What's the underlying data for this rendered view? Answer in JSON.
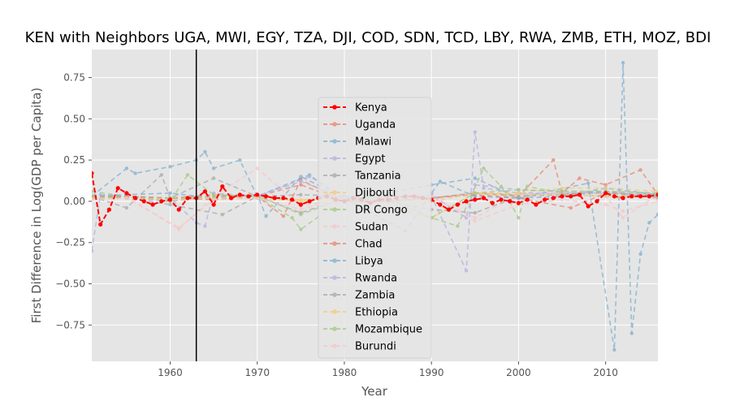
{
  "chart_data": {
    "type": "line",
    "title": "KEN with Neighbors UGA, MWI, EGY, TZA, DJI, COD, SDN, TCD, LBY, RWA, ZMB, ETH, MOZ, BDI",
    "xlabel": "Year",
    "ylabel": "First Difference in Log(GDP per Capita)",
    "xlim": [
      1951,
      2016
    ],
    "ylim": [
      -0.97,
      0.92
    ],
    "xticks": [
      1960,
      1970,
      1980,
      1990,
      2000,
      2010
    ],
    "yticks": [
      -0.75,
      -0.5,
      -0.25,
      0.0,
      0.25,
      0.5,
      0.75
    ],
    "ytick_labels": [
      "−0.75",
      "−0.50",
      "−0.25",
      "0.00",
      "0.25",
      "0.50",
      "0.75"
    ],
    "grid": true,
    "legend_position": "center",
    "vertical_line_x": 1963,
    "series": [
      {
        "name": "Kenya",
        "color": "#ff0000",
        "highlight": true,
        "x": [
          1951,
          1952,
          1953,
          1954,
          1955,
          1956,
          1957,
          1958,
          1959,
          1960,
          1961,
          1962,
          1963,
          1964,
          1965,
          1966,
          1967,
          1968,
          1969,
          1970,
          1971,
          1972,
          1973,
          1974,
          1975,
          1976,
          1977,
          1978,
          1979,
          1980,
          1981,
          1982,
          1983,
          1984,
          1985,
          1986,
          1987,
          1988,
          1989,
          1990,
          1991,
          1992,
          1993,
          1994,
          1995,
          1996,
          1997,
          1998,
          1999,
          2000,
          2001,
          2002,
          2003,
          2004,
          2005,
          2006,
          2007,
          2008,
          2009,
          2010,
          2011,
          2012,
          2013,
          2014,
          2015,
          2016
        ],
        "y": [
          0.17,
          -0.14,
          -0.05,
          0.08,
          0.05,
          0.02,
          0.0,
          -0.02,
          0.0,
          0.01,
          -0.05,
          0.02,
          0.02,
          0.06,
          -0.02,
          0.09,
          0.02,
          0.04,
          0.03,
          0.04,
          0.03,
          0.02,
          0.02,
          0.01,
          -0.02,
          0.0,
          0.02,
          0.03,
          0.01,
          0.0,
          0.02,
          0.01,
          -0.01,
          0.01,
          0.01,
          0.02,
          0.03,
          0.03,
          0.02,
          0.01,
          -0.02,
          -0.05,
          -0.02,
          0.0,
          0.01,
          0.02,
          -0.01,
          0.01,
          0.0,
          -0.01,
          0.01,
          -0.02,
          0.01,
          0.02,
          0.03,
          0.03,
          0.04,
          -0.03,
          0.0,
          0.05,
          0.03,
          0.02,
          0.03,
          0.03,
          0.03,
          0.04
        ]
      },
      {
        "name": "Uganda",
        "color": "#e5866e",
        "highlight": false,
        "x": [
          1951,
          1955,
          1960,
          1965,
          1970,
          1975,
          1980,
          1985,
          1990,
          1995,
          2000,
          2004,
          2005,
          2007,
          2010,
          2014,
          2016
        ],
        "y": [
          0.03,
          0.03,
          0.02,
          0.04,
          0.03,
          0.1,
          0.0,
          0.0,
          0.02,
          0.05,
          0.03,
          0.25,
          0.05,
          0.14,
          0.1,
          0.19,
          0.04
        ]
      },
      {
        "name": "Malawi",
        "color": "#7fafd0",
        "highlight": false,
        "x": [
          1951,
          1955,
          1956,
          1960,
          1963,
          1964,
          1965,
          1968,
          1970,
          1976,
          1980,
          1990,
          1995,
          2000,
          2008,
          2011,
          2012,
          2013,
          2014,
          2015,
          2016
        ],
        "y": [
          0.03,
          0.2,
          0.17,
          0.21,
          0.25,
          0.3,
          0.2,
          0.25,
          0.03,
          0.16,
          0.0,
          0.1,
          0.14,
          0.02,
          0.11,
          -0.9,
          0.84,
          -0.8,
          -0.32,
          -0.13,
          -0.08
        ]
      },
      {
        "name": "Egypt",
        "color": "#b3b1df",
        "highlight": false,
        "x": [
          1951,
          1952,
          1955,
          1960,
          1963,
          1964,
          1965,
          1970,
          1976,
          1980,
          1990,
          1994,
          1995,
          1996,
          2000,
          2005,
          2010,
          2016
        ],
        "y": [
          -0.3,
          0.04,
          0.03,
          0.02,
          -0.13,
          -0.15,
          0.05,
          0.03,
          0.15,
          0.03,
          0.03,
          -0.42,
          0.42,
          0.08,
          0.05,
          0.05,
          0.05,
          0.04
        ]
      },
      {
        "name": "Tanzania",
        "color": "#a8a8a8",
        "highlight": false,
        "x": [
          1951,
          1955,
          1959,
          1960,
          1965,
          1970,
          1975,
          1980,
          1985,
          1990,
          1995,
          2000,
          2005,
          2010,
          2016
        ],
        "y": [
          0.03,
          -0.04,
          0.16,
          0.02,
          0.14,
          0.03,
          0.04,
          0.03,
          0.0,
          0.02,
          0.05,
          0.04,
          0.05,
          0.05,
          0.04
        ]
      },
      {
        "name": "Djibouti",
        "color": "#f6cb77",
        "highlight": false,
        "x": [
          1951,
          1955,
          1960,
          1965,
          1970,
          1975,
          1980,
          1985,
          1990,
          1995,
          2000,
          2005,
          2010,
          2016
        ],
        "y": [
          0.02,
          0.03,
          0.0,
          0.03,
          0.02,
          0.0,
          0.02,
          0.01,
          -0.1,
          0.05,
          0.04,
          0.04,
          0.03,
          0.03
        ]
      },
      {
        "name": "DR Congo",
        "color": "#a3c97f",
        "highlight": false,
        "x": [
          1951,
          1955,
          1960,
          1962,
          1965,
          1970,
          1974,
          1975,
          1980,
          1985,
          1990,
          1993,
          1996,
          1998,
          2000,
          2001,
          2005,
          2010,
          2016
        ],
        "y": [
          0.06,
          0.03,
          0.0,
          0.16,
          0.04,
          0.03,
          -0.1,
          -0.17,
          0.02,
          0.02,
          -0.1,
          -0.15,
          0.2,
          0.09,
          -0.1,
          0.09,
          0.05,
          0.03,
          0.04
        ]
      },
      {
        "name": "Sudan",
        "color": "#f8c7c7",
        "highlight": false,
        "x": [
          1951,
          1955,
          1961,
          1965,
          1970,
          1975,
          1980,
          1985,
          1990,
          1995,
          2000,
          2005,
          2010,
          2012,
          2016
        ],
        "y": [
          0.02,
          0.03,
          -0.17,
          0.03,
          0.2,
          -0.03,
          0.02,
          0.0,
          0.03,
          -0.1,
          0.04,
          0.05,
          0.03,
          -0.1,
          0.04
        ]
      },
      {
        "name": "Chad",
        "color": "#e5866e",
        "highlight": false,
        "x": [
          1951,
          1955,
          1960,
          1965,
          1970,
          1973,
          1975,
          1980,
          1985,
          1990,
          1995,
          2000,
          2006,
          2010,
          2016
        ],
        "y": [
          0.02,
          0.03,
          0.02,
          0.01,
          0.03,
          -0.09,
          0.13,
          0.0,
          0.0,
          0.02,
          0.04,
          0.02,
          -0.04,
          0.05,
          0.03
        ]
      },
      {
        "name": "Libya",
        "color": "#7fafd0",
        "highlight": false,
        "x": [
          1951,
          1955,
          1960,
          1965,
          1970,
          1971,
          1975,
          1980,
          1987,
          1990,
          1991,
          1995,
          2000,
          2005,
          2010,
          2016
        ],
        "y": [
          0.03,
          0.04,
          0.05,
          0.02,
          0.04,
          -0.09,
          0.15,
          0.02,
          -0.18,
          0.05,
          0.12,
          0.03,
          0.02,
          0.03,
          0.08,
          0.04
        ]
      },
      {
        "name": "Rwanda",
        "color": "#b3b1df",
        "highlight": false,
        "x": [
          1951,
          1955,
          1960,
          1965,
          1970,
          1975,
          1980,
          1985,
          1990,
          1994,
          1995,
          2000,
          2005,
          2010,
          2016
        ],
        "y": [
          0.02,
          0.02,
          0.0,
          0.03,
          0.03,
          0.12,
          0.02,
          0.0,
          0.04,
          -0.1,
          0.1,
          0.07,
          0.06,
          0.06,
          0.05
        ]
      },
      {
        "name": "Zambia",
        "color": "#a8a8a8",
        "highlight": false,
        "x": [
          1951,
          1955,
          1960,
          1966,
          1970,
          1975,
          1980,
          1985,
          1990,
          1995,
          2000,
          2005,
          2010,
          2016
        ],
        "y": [
          0.03,
          0.02,
          -0.02,
          -0.08,
          0.03,
          -0.07,
          0.02,
          0.0,
          -0.05,
          -0.07,
          0.03,
          0.04,
          0.06,
          0.02
        ]
      },
      {
        "name": "Ethiopia",
        "color": "#f6cb77",
        "highlight": false,
        "x": [
          1951,
          1955,
          1960,
          1965,
          1970,
          1975,
          1980,
          1985,
          1990,
          1995,
          2000,
          2005,
          2010,
          2016
        ],
        "y": [
          0.02,
          0.02,
          0.01,
          0.02,
          0.02,
          0.01,
          0.02,
          0.0,
          0.0,
          0.05,
          0.05,
          0.08,
          0.08,
          0.06
        ]
      },
      {
        "name": "Mozambique",
        "color": "#a3c97f",
        "highlight": false,
        "x": [
          1951,
          1955,
          1960,
          1965,
          1970,
          1975,
          1980,
          1986,
          1990,
          1995,
          2000,
          2005,
          2010,
          2016
        ],
        "y": [
          0.03,
          0.02,
          0.02,
          0.03,
          0.04,
          -0.08,
          0.02,
          -0.05,
          -0.1,
          0.05,
          0.07,
          0.06,
          0.06,
          0.05
        ]
      },
      {
        "name": "Burundi",
        "color": "#f8c7c7",
        "highlight": false,
        "x": [
          1951,
          1955,
          1961,
          1965,
          1970,
          1975,
          1980,
          1985,
          1990,
          1995,
          2000,
          2005,
          2010,
          2012,
          2016
        ],
        "y": [
          0.01,
          0.02,
          -0.16,
          0.01,
          0.02,
          -0.05,
          0.02,
          0.04,
          0.03,
          -0.12,
          -0.02,
          0.01,
          -0.02,
          -0.06,
          0.0
        ]
      }
    ]
  }
}
